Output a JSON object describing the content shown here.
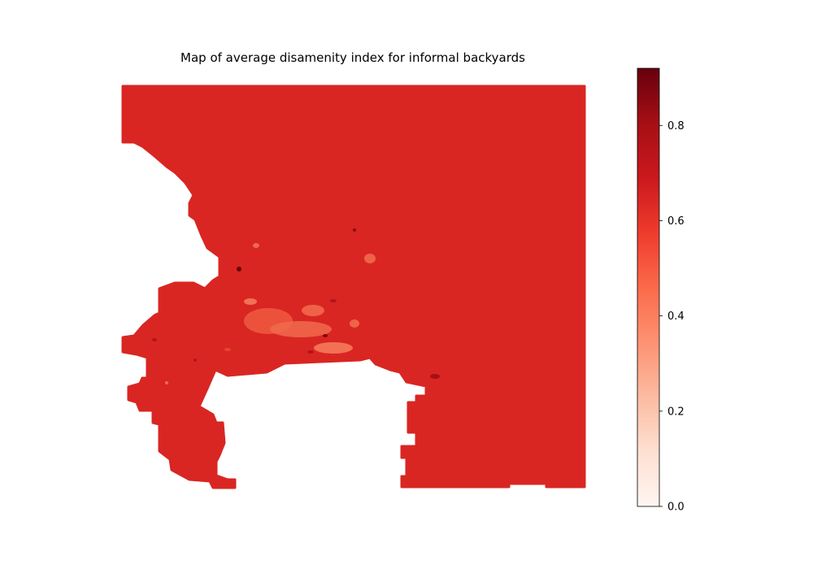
{
  "chart_data": {
    "type": "heatmap",
    "title": "Map of average disamenity index for informal backyards",
    "colormap": "Reds",
    "colorbar": {
      "range": [
        0,
        0.92
      ],
      "ticks": [
        0.0,
        0.2,
        0.4,
        0.6,
        0.8
      ],
      "tick_labels": [
        "0.0",
        "0.2",
        "0.4",
        "0.6",
        "0.8"
      ]
    },
    "dominant_value": 0.65,
    "value_range_observed": [
      0.35,
      0.92
    ],
    "axes_visible": false,
    "grid": false
  }
}
